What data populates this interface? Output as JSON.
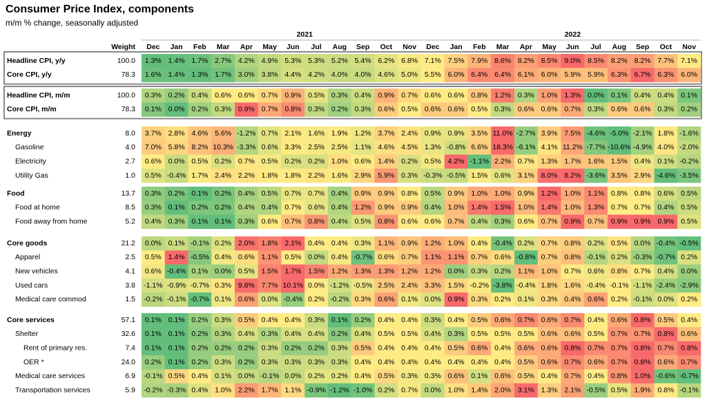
{
  "header": {
    "title": "Consumer Price Index, components",
    "subtitle": "m/m % change, seasonally adjusted"
  },
  "table": {
    "weight_header": "Weight",
    "years": [
      "2021",
      "2022"
    ],
    "columns": [
      "Dec",
      "Jan",
      "Feb",
      "Mar",
      "Apr",
      "May",
      "Jun",
      "Jul",
      "Aug",
      "Sep",
      "Oct",
      "Nov",
      "Dec",
      "Jan",
      "Feb",
      "Mar",
      "Apr",
      "May",
      "Jun",
      "Jul",
      "Aug",
      "Sep",
      "Oct",
      "Nov"
    ],
    "groups": [
      {
        "rows": [
          {
            "label": "Headline CPI, y/y",
            "weight": "100.0",
            "values": [
              "1.3%",
              "1.4%",
              "1.7%",
              "2.7%",
              "4.2%",
              "4.9%",
              "5.3%",
              "5.3%",
              "5.2%",
              "5.4%",
              "6.2%",
              "6.8%",
              "7.1%",
              "7.5%",
              "7.9%",
              "8.6%",
              "8.2%",
              "8.5%",
              "9.0%",
              "8.5%",
              "8.2%",
              "8.2%",
              "7.7%",
              "7.1%"
            ]
          },
          {
            "label": "Core CPI, y/y",
            "weight": "78.3",
            "values": [
              "1.6%",
              "1.4%",
              "1.3%",
              "1.7%",
              "3.0%",
              "3.8%",
              "4.4%",
              "4.2%",
              "4.0%",
              "4.0%",
              "4.6%",
              "5.0%",
              "5.5%",
              "6.0%",
              "6.4%",
              "6.4%",
              "6.1%",
              "6.0%",
              "5.9%",
              "5.9%",
              "6.3%",
              "6.7%",
              "6.3%",
              "6.0%"
            ]
          }
        ]
      },
      {
        "rows": [
          {
            "label": "Headline CPI, m/m",
            "weight": "100.0",
            "values": [
              "0.3%",
              "0.2%",
              "0.4%",
              "0.6%",
              "0.6%",
              "0.7%",
              "0.9%",
              "0.5%",
              "0.3%",
              "0.4%",
              "0.9%",
              "0.7%",
              "0.6%",
              "0.6%",
              "0.8%",
              "1.2%",
              "0.3%",
              "1.0%",
              "1.3%",
              "0.0%",
              "0.1%",
              "0.4%",
              "0.4%",
              "0.1%"
            ]
          },
          {
            "label": "Core CPI, m/m",
            "weight": "78.3",
            "values": [
              "0.1%",
              "0.0%",
              "0.2%",
              "0.3%",
              "0.9%",
              "0.7%",
              "0.8%",
              "0.3%",
              "0.2%",
              "0.3%",
              "0.6%",
              "0.5%",
              "0.6%",
              "0.6%",
              "0.5%",
              "0.3%",
              "0.6%",
              "0.6%",
              "0.7%",
              "0.3%",
              "0.6%",
              "0.6%",
              "0.3%",
              "0.2%"
            ]
          }
        ]
      },
      {
        "rows": [
          {
            "label": "Energy",
            "weight": "8.0",
            "values": [
              "3.7%",
              "2.8%",
              "4.6%",
              "5.6%",
              "-1.2%",
              "0.7%",
              "2.1%",
              "1.6%",
              "1.9%",
              "1.2%",
              "3.7%",
              "2.4%",
              "0.9%",
              "0.9%",
              "3.5%",
              "11.0%",
              "-2.7%",
              "3.9%",
              "7.5%",
              "-4.6%",
              "-5.0%",
              "-2.1%",
              "1.8%",
              "-1.6%"
            ]
          },
          {
            "label": "Gasoline",
            "weight": "4.0",
            "values": [
              "7.0%",
              "5.8%",
              "8.2%",
              "10.3%",
              "-3.3%",
              "0.6%",
              "3.3%",
              "2.5%",
              "2.5%",
              "1.1%",
              "4.6%",
              "4.5%",
              "1.3%",
              "-0.8%",
              "6.6%",
              "18.3%",
              "-6.1%",
              "4.1%",
              "11.2%",
              "-7.7%",
              "-10.6%",
              "-4.9%",
              "4.0%",
              "-2.0%"
            ]
          },
          {
            "label": "Electricity",
            "weight": "2.7",
            "values": [
              "0.6%",
              "0.0%",
              "0.5%",
              "0.2%",
              "0.7%",
              "0.5%",
              "0.2%",
              "0.2%",
              "1.0%",
              "0.6%",
              "1.4%",
              "0.2%",
              "0.5%",
              "4.2%",
              "-1.1%",
              "2.2%",
              "0.7%",
              "1.3%",
              "1.7%",
              "1.6%",
              "1.5%",
              "0.4%",
              "0.1%",
              "-0.2%"
            ]
          },
          {
            "label": "Utility Gas",
            "weight": "1.0",
            "values": [
              "0.5%",
              "-0.4%",
              "1.7%",
              "2.4%",
              "2.2%",
              "1.8%",
              "1.8%",
              "2.2%",
              "1.6%",
              "2.9%",
              "5.9%",
              "0.3%",
              "-0.3%",
              "-0.5%",
              "1.5%",
              "0.6%",
              "3.1%",
              "8.0%",
              "8.2%",
              "-3.6%",
              "3.5%",
              "2.9%",
              "-4.6%",
              "-3.5%"
            ]
          }
        ]
      },
      {
        "rows": [
          {
            "label": "Food",
            "weight": "13.7",
            "values": [
              "0.3%",
              "0.2%",
              "0.1%",
              "0.2%",
              "0.4%",
              "0.5%",
              "0.7%",
              "0.7%",
              "0.4%",
              "0.9%",
              "0.9%",
              "0.8%",
              "0.5%",
              "0.9%",
              "1.0%",
              "1.0%",
              "0.9%",
              "1.2%",
              "1.0%",
              "1.1%",
              "0.8%",
              "0.8%",
              "0.6%",
              "0.5%"
            ]
          },
          {
            "label": "Food at home",
            "weight": "8.5",
            "values": [
              "0.3%",
              "0.1%",
              "0.2%",
              "0.2%",
              "0.4%",
              "0.4%",
              "0.7%",
              "0.6%",
              "0.4%",
              "1.2%",
              "0.9%",
              "0.9%",
              "0.4%",
              "1.0%",
              "1.4%",
              "1.5%",
              "1.0%",
              "1.4%",
              "1.0%",
              "1.3%",
              "0.7%",
              "0.7%",
              "0.4%",
              "0.5%"
            ]
          },
          {
            "label": "Food away from home",
            "weight": "5.2",
            "values": [
              "0.4%",
              "0.3%",
              "0.1%",
              "0.1%",
              "0.3%",
              "0.6%",
              "0.7%",
              "0.8%",
              "0.4%",
              "0.5%",
              "0.8%",
              "0.6%",
              "0.6%",
              "0.7%",
              "0.4%",
              "0.3%",
              "0.6%",
              "0.7%",
              "0.9%",
              "0.7%",
              "0.9%",
              "0.9%",
              "0.9%",
              "0.5%"
            ]
          }
        ]
      },
      {
        "rows": [
          {
            "label": "Core goods",
            "weight": "21.2",
            "values": [
              "0.0%",
              "0.1%",
              "-0.1%",
              "0.2%",
              "2.0%",
              "1.8%",
              "2.1%",
              "0.4%",
              "0.4%",
              "0.3%",
              "1.1%",
              "0.9%",
              "1.2%",
              "1.0%",
              "0.4%",
              "-0.4%",
              "0.2%",
              "0.7%",
              "0.8%",
              "0.2%",
              "0.5%",
              "0.0%",
              "-0.4%",
              "-0.5%"
            ]
          },
          {
            "label": "Apparel",
            "weight": "2.5",
            "values": [
              "0.5%",
              "1.4%",
              "-0.5%",
              "0.4%",
              "0.6%",
              "1.1%",
              "0.5%",
              "0.0%",
              "0.4%",
              "-0.7%",
              "0.6%",
              "0.7%",
              "1.1%",
              "1.1%",
              "0.7%",
              "0.6%",
              "-0.8%",
              "0.7%",
              "0.8%",
              "-0.1%",
              "0.2%",
              "-0.3%",
              "-0.7%",
              "0.2%"
            ]
          },
          {
            "label": "New vehicles",
            "weight": "4.1",
            "values": [
              "0.6%",
              "-0.4%",
              "0.1%",
              "0.0%",
              "0.5%",
              "1.5%",
              "1.7%",
              "1.5%",
              "1.2%",
              "1.3%",
              "1.3%",
              "1.2%",
              "1.2%",
              "0.0%",
              "0.3%",
              "0.2%",
              "1.1%",
              "1.0%",
              "0.7%",
              "0.6%",
              "0.8%",
              "0.7%",
              "0.4%",
              "0.0%"
            ]
          },
          {
            "label": "Used cars",
            "weight": "3.8",
            "values": [
              "-1.1%",
              "-0.9%",
              "-0.7%",
              "0.3%",
              "9.8%",
              "7.7%",
              "10.1%",
              "0.0%",
              "-1.2%",
              "-0.5%",
              "2.5%",
              "2.4%",
              "3.3%",
              "1.5%",
              "-0.2%",
              "-3.8%",
              "-0.4%",
              "1.8%",
              "1.6%",
              "-0.4%",
              "-0.1%",
              "-1.1%",
              "-2.4%",
              "-2.9%"
            ]
          },
          {
            "label": "Medical care commod",
            "weight": "1.5",
            "values": [
              "-0.2%",
              "-0.1%",
              "-0.7%",
              "0.1%",
              "0.6%",
              "0.0%",
              "-0.4%",
              "0.2%",
              "-0.2%",
              "0.3%",
              "0.6%",
              "0.1%",
              "0.0%",
              "0.9%",
              "0.3%",
              "0.2%",
              "0.1%",
              "0.3%",
              "0.4%",
              "0.6%",
              "0.2%",
              "-0.1%",
              "0.0%",
              "0.2%"
            ]
          }
        ]
      },
      {
        "rows": [
          {
            "label": "Core services",
            "weight": "57.1",
            "values": [
              "0.1%",
              "0.1%",
              "0.2%",
              "0.3%",
              "0.5%",
              "0.4%",
              "0.4%",
              "0.3%",
              "0.1%",
              "0.2%",
              "0.4%",
              "0.4%",
              "0.3%",
              "0.4%",
              "0.5%",
              "0.6%",
              "0.7%",
              "0.6%",
              "0.7%",
              "0.4%",
              "0.6%",
              "0.8%",
              "0.5%",
              "0.4%"
            ]
          },
          {
            "label": "Shelter",
            "weight": "32.6",
            "values": [
              "0.1%",
              "0.1%",
              "0.2%",
              "0.3%",
              "0.4%",
              "0.3%",
              "0.4%",
              "0.4%",
              "0.2%",
              "0.4%",
              "0.5%",
              "0.5%",
              "0.4%",
              "0.3%",
              "0.5%",
              "0.5%",
              "0.5%",
              "0.6%",
              "0.6%",
              "0.5%",
              "0.7%",
              "0.7%",
              "0.8%",
              "0.6%"
            ]
          },
          {
            "label": "Rent of primary res.",
            "weight": "7.4",
            "values": [
              "0.1%",
              "0.1%",
              "0.2%",
              "0.2%",
              "0.2%",
              "0.3%",
              "0.2%",
              "0.2%",
              "0.3%",
              "0.5%",
              "0.4%",
              "0.4%",
              "0.4%",
              "0.5%",
              "0.6%",
              "0.4%",
              "0.6%",
              "0.6%",
              "0.8%",
              "0.7%",
              "0.7%",
              "0.8%",
              "0.7%",
              "0.8%"
            ]
          },
          {
            "label": "OER *",
            "weight": "24.0",
            "values": [
              "0.2%",
              "0.1%",
              "0.2%",
              "0.3%",
              "0.2%",
              "0.3%",
              "0.3%",
              "0.3%",
              "0.3%",
              "0.4%",
              "0.4%",
              "0.4%",
              "0.4%",
              "0.4%",
              "0.4%",
              "0.4%",
              "0.5%",
              "0.6%",
              "0.7%",
              "0.6%",
              "0.7%",
              "0.8%",
              "0.6%",
              "0.7%"
            ]
          },
          {
            "label": "Medical care services",
            "weight": "6.9",
            "values": [
              "-0.1%",
              "0.5%",
              "0.4%",
              "0.1%",
              "0.0%",
              "-0.1%",
              "0.0%",
              "0.2%",
              "0.2%",
              "0.4%",
              "0.5%",
              "0.3%",
              "0.3%",
              "0.6%",
              "0.1%",
              "0.6%",
              "0.5%",
              "0.4%",
              "0.7%",
              "0.4%",
              "0.8%",
              "1.0%",
              "-0.6%",
              "-0.7%"
            ]
          },
          {
            "label": "Transportation services",
            "weight": "5.9",
            "values": [
              "-0.2%",
              "-0.3%",
              "0.4%",
              "1.0%",
              "2.2%",
              "1.7%",
              "1.1%",
              "-0.9%",
              "-1.2%",
              "-1.0%",
              "0.2%",
              "0.7%",
              "0.0%",
              "1.0%",
              "1.4%",
              "2.0%",
              "3.1%",
              "1.3%",
              "2.1%",
              "-0.5%",
              "0.5%",
              "1.9%",
              "0.8%",
              "-0.1%"
            ]
          }
        ]
      }
    ]
  }
}
